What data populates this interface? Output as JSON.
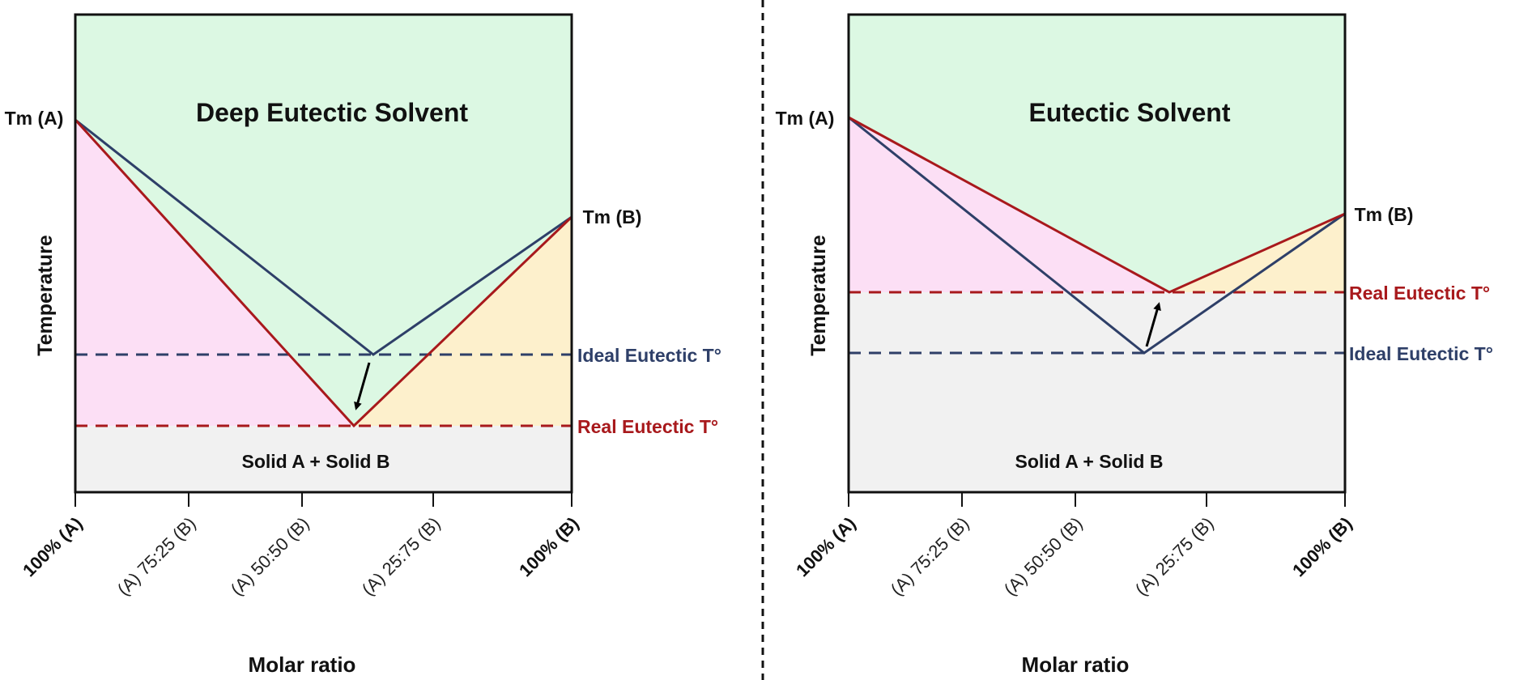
{
  "colors": {
    "liquid": "#dcf8e3",
    "region_a": "#fcdff5",
    "region_b": "#fdf0cc",
    "solid": "#f1f1f1",
    "ideal": "#2e3f68",
    "real": "#a8191c",
    "axis": "#111111"
  },
  "panels": [
    {
      "title": "Deep Eutectic Solvent",
      "tm_a": "Tm (A)",
      "tm_b": "Tm (B)",
      "ideal_label": "Ideal Eutectic T°",
      "real_label": "Real Eutectic T°",
      "solid_label": "Solid A + Solid B",
      "ylabel": "Temperature",
      "xlabel": "Molar ratio",
      "ticks": [
        {
          "pre": "100% ",
          "em": "(A)",
          "bold": true
        },
        {
          "pre": "(A) 75:25 (B)",
          "em": "",
          "bold": false
        },
        {
          "pre": "(A) 50:50 (B)",
          "em": "",
          "bold": false
        },
        {
          "pre": "(A) 25:75 (B)",
          "em": "",
          "bold": false
        },
        {
          "pre": "100% ",
          "em": "(B)",
          "bold": true
        }
      ]
    },
    {
      "title": "Eutectic Solvent",
      "tm_a": "Tm (A)",
      "tm_b": "Tm (B)",
      "ideal_label": "Ideal Eutectic T°",
      "real_label": "Real Eutectic T°",
      "solid_label": "Solid A + Solid B",
      "ylabel": "Temperature",
      "xlabel": "Molar ratio",
      "ticks": [
        {
          "pre": "100% ",
          "em": "(A)",
          "bold": true
        },
        {
          "pre": "(A) 75:25 (B)",
          "em": "",
          "bold": false
        },
        {
          "pre": "(A) 50:50 (B)",
          "em": "",
          "bold": false
        },
        {
          "pre": "(A) 25:75 (B)",
          "em": "",
          "bold": false
        },
        {
          "pre": "100% ",
          "em": "(B)",
          "bold": true
        }
      ]
    }
  ]
}
